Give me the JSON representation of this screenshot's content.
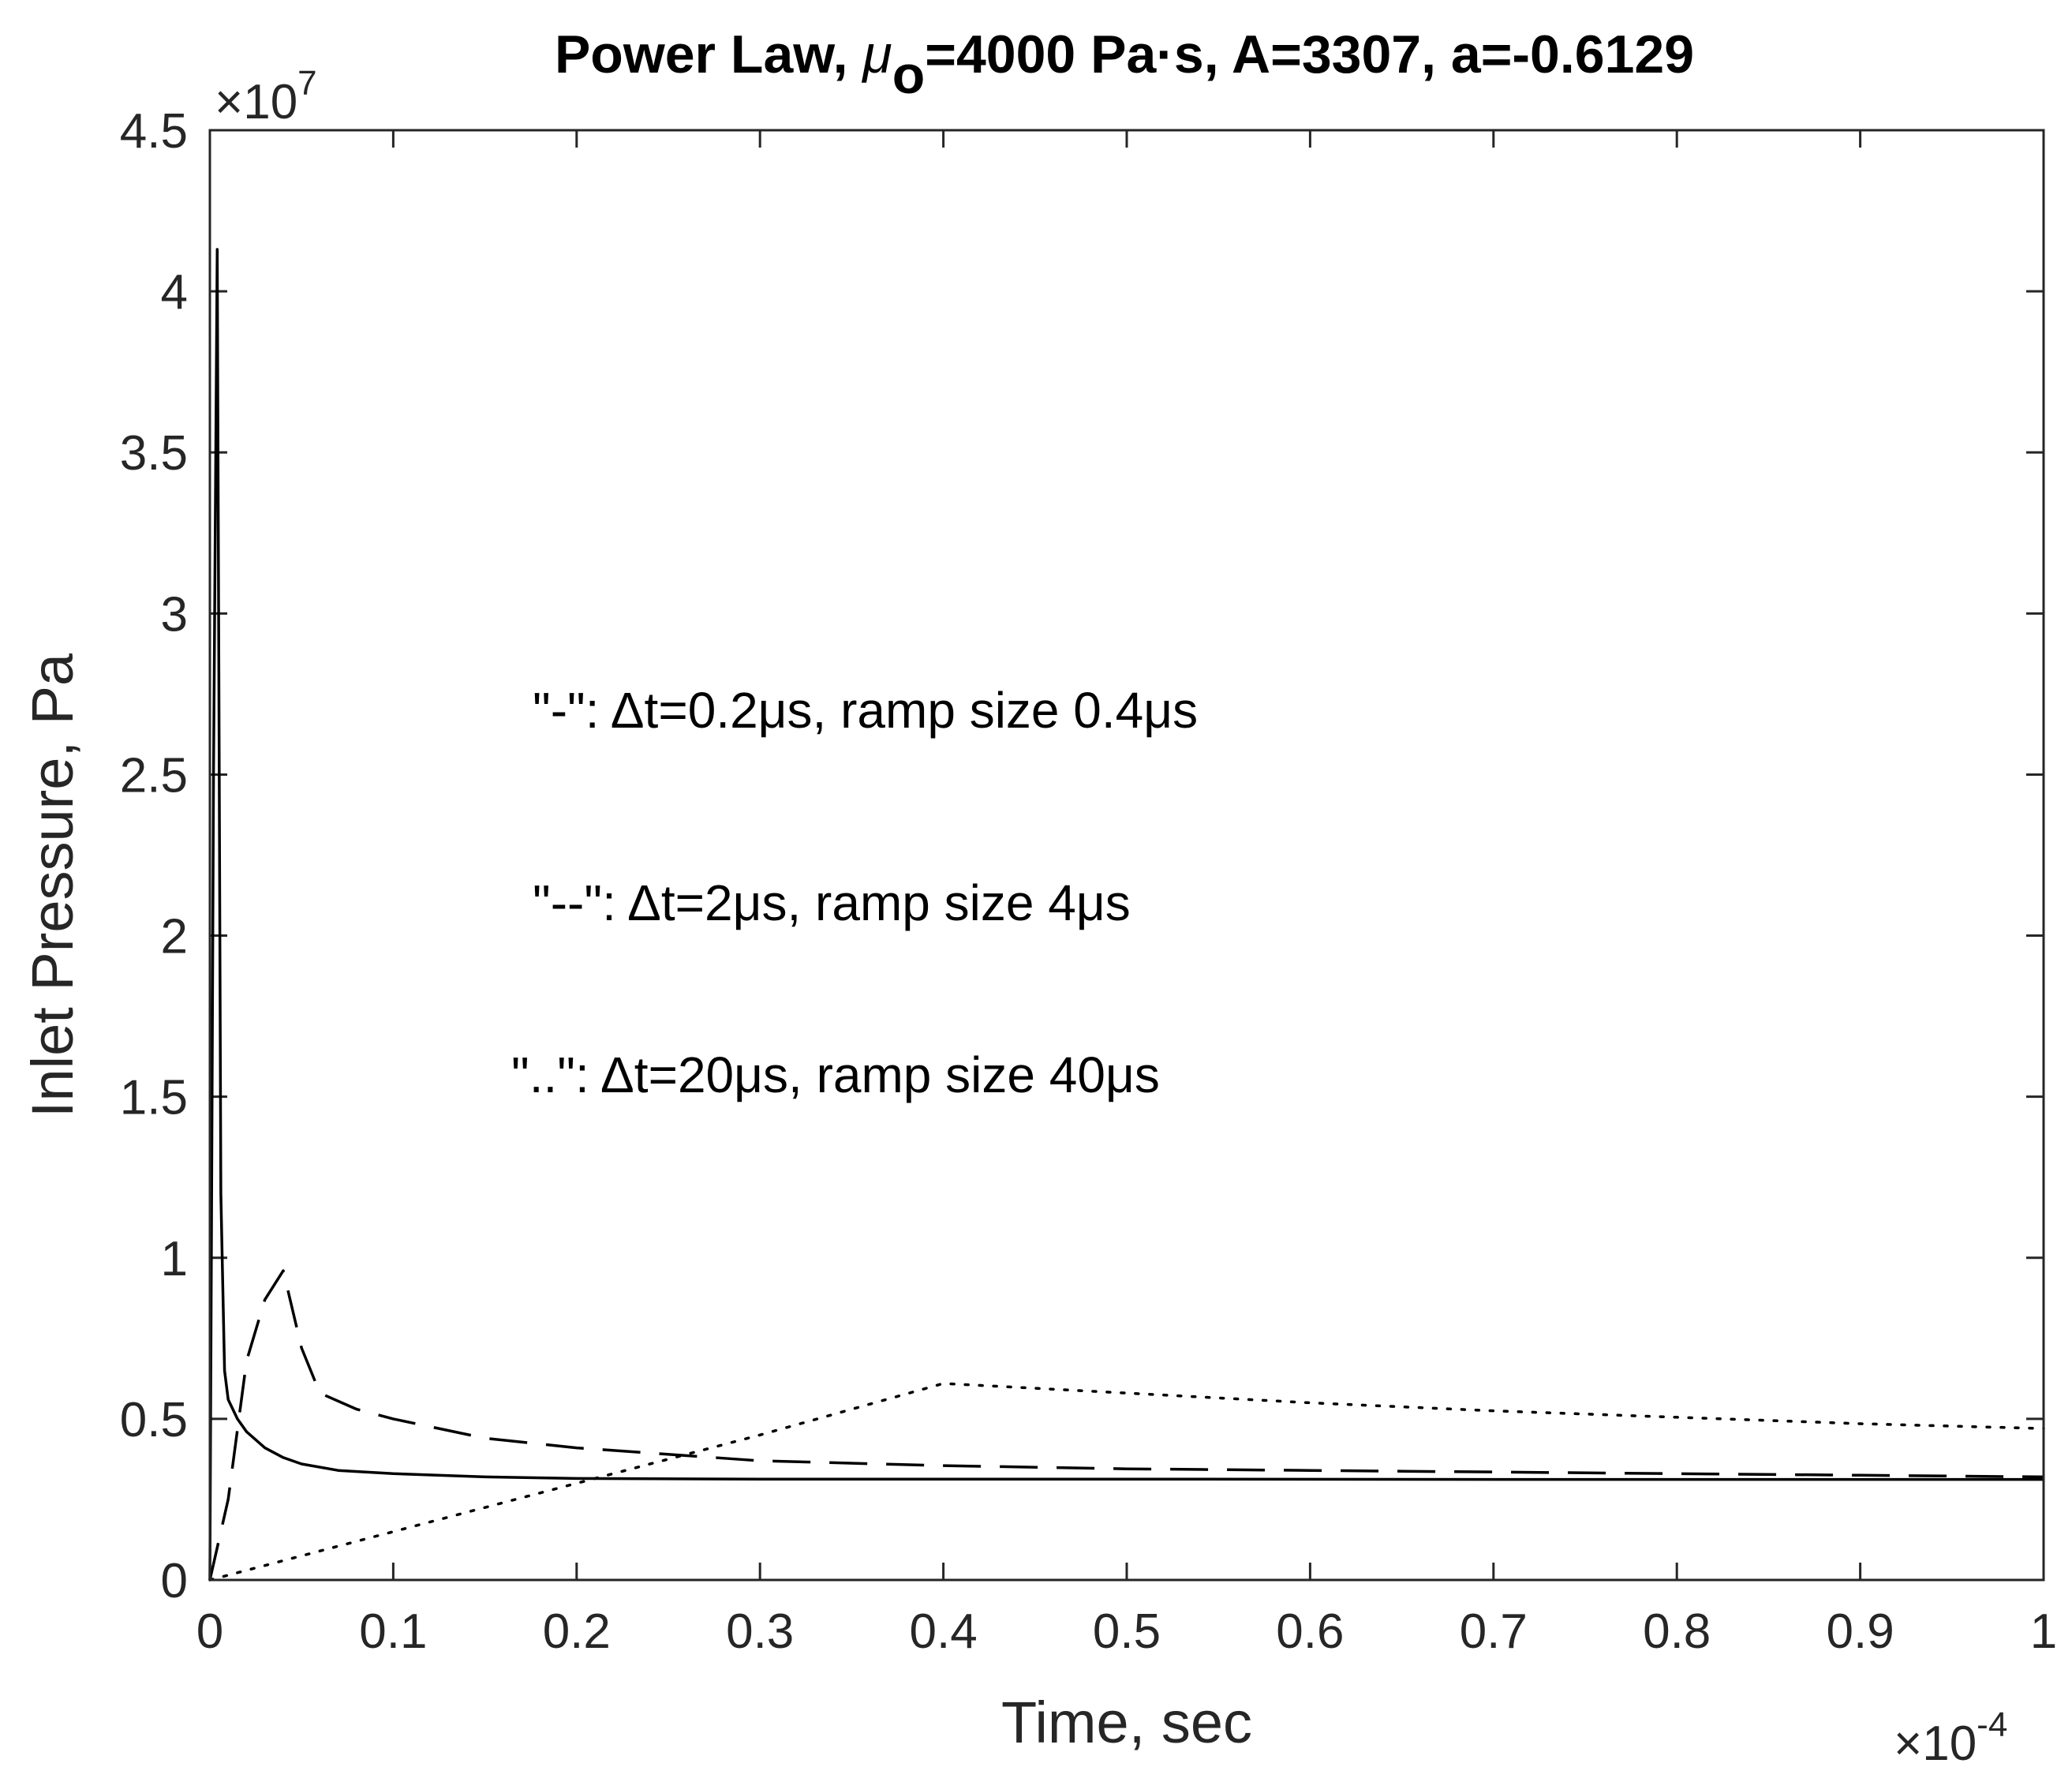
{
  "chart_data": {
    "type": "line",
    "title": "Power Law, μ_o=4000 Pa·s, A=3307, a=-0.6129",
    "title_parts": {
      "prefix": "Power Law, ",
      "mu": "μ",
      "sub": "o",
      "suffix": "=4000 Pa·s, A=3307, a=-0.6129"
    },
    "xlabel": "Time, sec",
    "ylabel": "Inlet Pressure, Pa",
    "x_exponent_label": {
      "base": "×10",
      "exp": "-4"
    },
    "y_exponent_label": {
      "base": "×10",
      "exp": "7"
    },
    "xlim": [
      0,
      1
    ],
    "ylim": [
      0,
      4.5
    ],
    "xticks": [
      0,
      0.1,
      0.2,
      0.3,
      0.4,
      0.5,
      0.6,
      0.7,
      0.8,
      0.9,
      1
    ],
    "xtick_labels": [
      "0",
      "0.1",
      "0.2",
      "0.3",
      "0.4",
      "0.5",
      "0.6",
      "0.7",
      "0.8",
      "0.9",
      "1"
    ],
    "yticks": [
      0,
      0.5,
      1,
      1.5,
      2,
      2.5,
      3,
      3.5,
      4,
      4.5
    ],
    "ytick_labels": [
      "0",
      "0.5",
      "1",
      "1.5",
      "2",
      "2.5",
      "3",
      "3.5",
      "4",
      "4.5"
    ],
    "grid": false,
    "annotations": [
      {
        "text": "\"-\": Δt=0.2μs, ramp size 0.4μs"
      },
      {
        "text": "\"--\": Δt=2μs, ramp size 4μs"
      },
      {
        "text": "\"..\": Δt=20μs, ramp size 40μs"
      }
    ],
    "series": [
      {
        "style": "solid",
        "x": [
          0,
          0.002,
          0.004,
          0.006,
          0.008,
          0.01,
          0.015,
          0.02,
          0.03,
          0.04,
          0.05,
          0.07,
          0.1,
          0.15,
          0.2,
          0.3,
          0.5,
          0.7,
          1.0
        ],
        "y": [
          0,
          2.5,
          4.13,
          1.2,
          0.65,
          0.56,
          0.5,
          0.46,
          0.41,
          0.38,
          0.36,
          0.34,
          0.33,
          0.32,
          0.315,
          0.313,
          0.313,
          0.312,
          0.312
        ]
      },
      {
        "style": "dashed",
        "x": [
          0,
          0.01,
          0.02,
          0.03,
          0.04,
          0.05,
          0.06,
          0.08,
          0.1,
          0.15,
          0.2,
          0.3,
          0.4,
          0.5,
          0.6,
          0.7,
          0.8,
          0.9,
          1.0
        ],
        "y": [
          0,
          0.25,
          0.68,
          0.87,
          0.96,
          0.72,
          0.58,
          0.53,
          0.5,
          0.44,
          0.41,
          0.37,
          0.355,
          0.345,
          0.34,
          0.335,
          0.33,
          0.325,
          0.32
        ]
      },
      {
        "style": "dotted",
        "x": [
          0,
          0.1,
          0.2,
          0.3,
          0.4,
          0.5,
          0.6,
          0.7,
          0.8,
          0.9,
          1.0
        ],
        "y": [
          0,
          0.15,
          0.3,
          0.45,
          0.61,
          0.58,
          0.55,
          0.525,
          0.505,
          0.485,
          0.47
        ]
      }
    ]
  }
}
